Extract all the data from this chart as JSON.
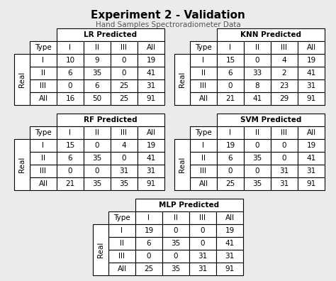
{
  "title": "Experiment 2 - Validation",
  "subtitle": "Hand Samples Spectroradiometer Data",
  "bg_color": "#ebebeb",
  "tables": [
    {
      "name": "LR Predicted",
      "col": 0,
      "row": 0,
      "data": [
        [
          "Type",
          "I",
          "II",
          "III",
          "All"
        ],
        [
          "I",
          "10",
          "9",
          "0",
          "19"
        ],
        [
          "II",
          "6",
          "35",
          "0",
          "41"
        ],
        [
          "III",
          "0",
          "6",
          "25",
          "31"
        ],
        [
          "All",
          "16",
          "50",
          "25",
          "91"
        ]
      ]
    },
    {
      "name": "KNN Predicted",
      "col": 1,
      "row": 0,
      "data": [
        [
          "Type",
          "I",
          "II",
          "III",
          "All"
        ],
        [
          "I",
          "15",
          "0",
          "4",
          "19"
        ],
        [
          "II",
          "6",
          "33",
          "2",
          "41"
        ],
        [
          "III",
          "0",
          "8",
          "23",
          "31"
        ],
        [
          "All",
          "21",
          "41",
          "29",
          "91"
        ]
      ]
    },
    {
      "name": "RF Predicted",
      "col": 0,
      "row": 1,
      "data": [
        [
          "Type",
          "I",
          "II",
          "III",
          "All"
        ],
        [
          "I",
          "15",
          "0",
          "4",
          "19"
        ],
        [
          "II",
          "6",
          "35",
          "0",
          "41"
        ],
        [
          "III",
          "0",
          "0",
          "31",
          "31"
        ],
        [
          "All",
          "21",
          "35",
          "35",
          "91"
        ]
      ]
    },
    {
      "name": "SVM Predicted",
      "col": 1,
      "row": 1,
      "data": [
        [
          "Type",
          "I",
          "II",
          "III",
          "All"
        ],
        [
          "I",
          "19",
          "0",
          "0",
          "19"
        ],
        [
          "II",
          "6",
          "35",
          "0",
          "41"
        ],
        [
          "III",
          "0",
          "0",
          "31",
          "31"
        ],
        [
          "All",
          "25",
          "35",
          "31",
          "91"
        ]
      ]
    },
    {
      "name": "MLP Predicted",
      "col": 2,
      "row": 2,
      "data": [
        [
          "Type",
          "I",
          "II",
          "III",
          "All"
        ],
        [
          "I",
          "19",
          "0",
          "0",
          "19"
        ],
        [
          "II",
          "6",
          "35",
          "0",
          "41"
        ],
        [
          "III",
          "0",
          "0",
          "31",
          "31"
        ],
        [
          "All",
          "25",
          "35",
          "31",
          "91"
        ]
      ]
    }
  ]
}
